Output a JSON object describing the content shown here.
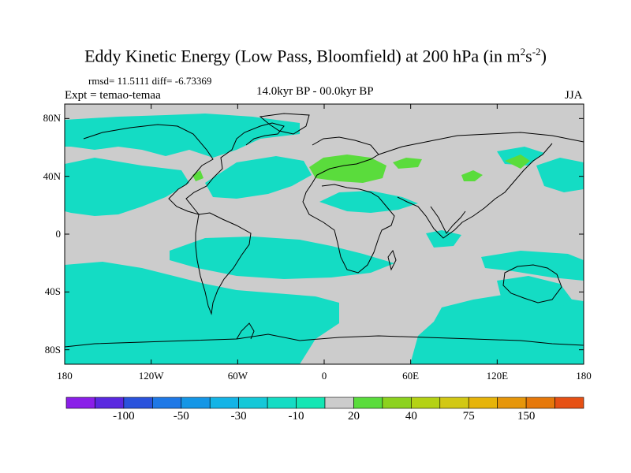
{
  "title": {
    "prefix": "Eddy Kinetic Energy (Low Pass, Bloomfield) at 200 hPa (in m",
    "unit_sup1": "2",
    "unit_mid": "s",
    "unit_sup2": "-2",
    "suffix": ")"
  },
  "stats": "rmsd= 11.5111  diff= -6.73369",
  "experiment": "Expt = temao-temaa",
  "period": "14.0kyr BP - 00.0kyr BP",
  "season": "JJA",
  "axes": {
    "y_ticks": [
      {
        "label": "80N",
        "lat": 80
      },
      {
        "label": "40N",
        "lat": 40
      },
      {
        "label": "0",
        "lat": 0
      },
      {
        "label": "40S",
        "lat": -40
      },
      {
        "label": "80S",
        "lat": -80
      }
    ],
    "x_ticks": [
      {
        "label": "180",
        "lon": -180
      },
      {
        "label": "120W",
        "lon": -120
      },
      {
        "label": "60W",
        "lon": -60
      },
      {
        "label": "0",
        "lon": 0
      },
      {
        "label": "60E",
        "lon": 60
      },
      {
        "label": "120E",
        "lon": 120
      },
      {
        "label": "180",
        "lon": 180
      }
    ]
  },
  "colorbar": {
    "colors": [
      "#8a1ee8",
      "#5a28e0",
      "#2a52dc",
      "#1e78e6",
      "#1496e6",
      "#14b4e6",
      "#14c8d8",
      "#14dcc4",
      "#14e6b4",
      "#cccccc",
      "#5adc3c",
      "#8cd21e",
      "#b4d214",
      "#d2c814",
      "#e6b40a",
      "#e6960a",
      "#e6780a",
      "#e65014"
    ],
    "labels": [
      "-100",
      "-50",
      "-30",
      "-10",
      "20",
      "40",
      "75",
      "150"
    ]
  },
  "colors": {
    "land_neutral": "#cccccc",
    "cyan_negative": "#14dcc4",
    "green_positive": "#5adc3c",
    "coast": "#000000"
  }
}
